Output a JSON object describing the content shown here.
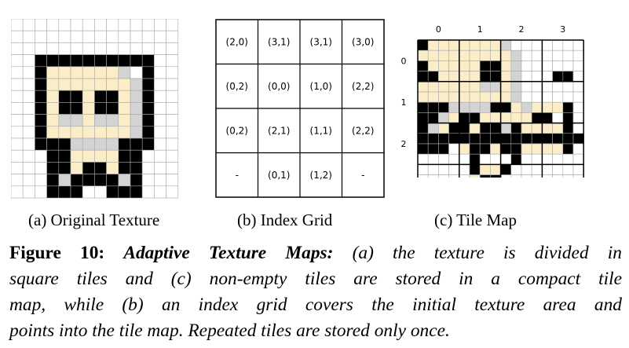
{
  "colors": {
    "black": "#000000",
    "cream": "#fbedc8",
    "gray": "#d3d3d3",
    "white": "#ffffff",
    "grid": "#a9a9a9"
  },
  "panel_a": {
    "caption": "(a) Original Texture",
    "rows": [
      "..............",
      "..............",
      "..............",
      "..KKKKKKKKKK..",
      "..KCCCCCCGWK..",
      "..KCCCCCCCGK..",
      "..KCKKCKKCGK..",
      "..KCKKCKKCGK..",
      "..KCGGCGGCGK..",
      "..KCCCCCCCGK..",
      "..KKKGGGGKKK..",
      "...KKCCCCKK...",
      "...KKCKKCKK...",
      "...KGKKKKGK...",
      "...KKK..KKK..."
    ]
  },
  "panel_b": {
    "caption": "(b) Index Grid",
    "cells": [
      [
        "(2,0)",
        "(3,1)",
        "(3,1)",
        "(3,0)"
      ],
      [
        "(0,2)",
        "(0,0)",
        "(1,0)",
        "(2,2)"
      ],
      [
        "(0,2)",
        "(2,1)",
        "(1,1)",
        "(2,2)"
      ],
      [
        "-",
        "(0,1)",
        "(1,2)",
        "-"
      ]
    ]
  },
  "panel_c": {
    "caption": "(c) Tile Map",
    "col_labels": [
      "0",
      "1",
      "2",
      "3"
    ],
    "row_labels": [
      "0",
      "1",
      "2"
    ],
    "rows": [
      "KCCCCCCCGW......",
      "CCCCCCCCCG......",
      "KCCCCCKKCG......",
      "KKCCCCKKCG...KK.",
      "CCCCCCGGCG......",
      "CCCCCCCCCG......",
      "KKKGGGGKKCGCCCK.",
      "KKGCKKCCCCCKK.K.",
      "KGCKKCKKGKCCCCK.",
      "KKKKKKKKKKKKKKKK",
      "KKK.CKKCKKCCCCK.",
      ".....K...K......",
      ".....KCCK.......",
      ".....CKK........",
      ".....KKKGKK.....",
      ".....KKK.KK....."
    ]
  },
  "figure_text": {
    "label": "Figure 10:",
    "title": "Adaptive Texture Maps:",
    "lines": [
      "(a) the texture is divided in",
      "square tiles and (c) non-empty tiles are stored in a compact tile",
      "map, while (b) an index grid covers the initial texture area and",
      "points into the tile map. Repeated tiles are stored only once."
    ]
  }
}
